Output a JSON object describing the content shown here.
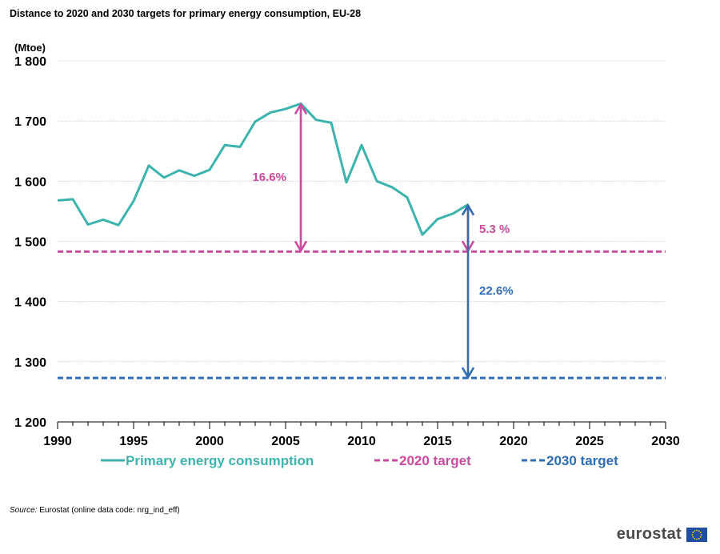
{
  "chart_data": {
    "type": "line",
    "title": "Distance to 2020 and 2030 targets for primary energy consumption, EU-28",
    "ylabel": "(Mtoe)",
    "xlabel": "",
    "xlim": [
      1990,
      2030
    ],
    "ylim": [
      1200,
      1800
    ],
    "x_ticks": [
      "1990",
      "1995",
      "2000",
      "2005",
      "2010",
      "2015",
      "2020",
      "2025",
      "2030"
    ],
    "y_ticks": [
      "1 200",
      "1 300",
      "1 400",
      "1 500",
      "1 600",
      "1 700",
      "1 800"
    ],
    "grid": true,
    "legend_position": "bottom",
    "series": [
      {
        "name": "Primary energy consumption",
        "color": "#3cb4ad",
        "style": "solid",
        "x": [
          1990,
          1991,
          1992,
          1993,
          1994,
          1995,
          1996,
          1997,
          1998,
          1999,
          2000,
          2001,
          2002,
          2003,
          2004,
          2005,
          2006,
          2007,
          2008,
          2009,
          2010,
          2011,
          2012,
          2013,
          2014,
          2015,
          2016,
          2017
        ],
        "values": [
          1568,
          1570,
          1528,
          1536,
          1527,
          1567,
          1626,
          1606,
          1618,
          1609,
          1619,
          1660,
          1657,
          1699,
          1714,
          1720,
          1729,
          1702,
          1697,
          1598,
          1660,
          1600,
          1590,
          1573,
          1511,
          1537,
          1546,
          1561
        ]
      },
      {
        "name": "2020 target",
        "color": "#c94b9e",
        "style": "dashed",
        "x": [
          1990,
          2030
        ],
        "values": [
          1483,
          1483
        ]
      },
      {
        "name": "2030 target",
        "color": "#2f6db5",
        "style": "dashed",
        "x": [
          1990,
          2030
        ],
        "values": [
          1273,
          1273
        ]
      }
    ],
    "annotations": [
      {
        "label": "16.6%",
        "color": "#c94b9e",
        "x": 2006,
        "from": 1729,
        "to": 1483
      },
      {
        "label": "5.3 %",
        "color": "#c94b9e",
        "x": 2017,
        "from": 1561,
        "to": 1483
      },
      {
        "label": "22.6%",
        "color": "#2f6db5",
        "x": 2017,
        "from": 1561,
        "to": 1273
      }
    ]
  },
  "source": {
    "label": "Source:",
    "text": "Eurostat (online data code: nrg_ind_eff)"
  },
  "brand": {
    "name": "eurostat",
    "flag_color": "#1f4ea3",
    "star_color": "#ffd617"
  }
}
